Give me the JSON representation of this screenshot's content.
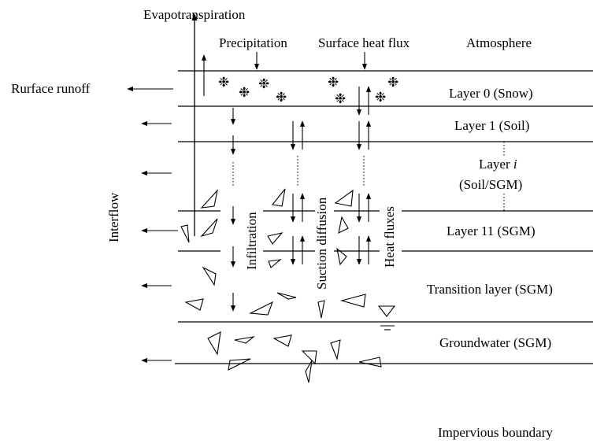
{
  "labels": {
    "evapotranspiration": "Evapotranspiration",
    "precipitation": "Precipitation",
    "surface_heat_flux": "Surface heat flux",
    "atmosphere": "Atmosphere",
    "surface_runoff": "Rurface runoff",
    "interflow": "Interflow",
    "infiltration": "Infiltration",
    "suction_diffusion": "Suction diffusion",
    "heat_fluxes": "Heat fluxes",
    "water_table_symbol": "▽",
    "snow_symbol": "❉"
  },
  "layers": [
    {
      "id": "layer-0",
      "name": "Layer 0 (Snow)"
    },
    {
      "id": "layer-1",
      "name": "Layer 1 (Soil)"
    },
    {
      "id": "layer-i",
      "name_prefix": "Layer ",
      "name_index": "i",
      "name_line2": "(Soil/SGM)"
    },
    {
      "id": "layer-11",
      "name": "Layer 11 (SGM)"
    },
    {
      "id": "transition",
      "name": "Transition layer (SGM)"
    },
    {
      "id": "groundwater",
      "name": "Groundwater (SGM)"
    },
    {
      "id": "impervious",
      "name": "Impervious boundary"
    }
  ]
}
